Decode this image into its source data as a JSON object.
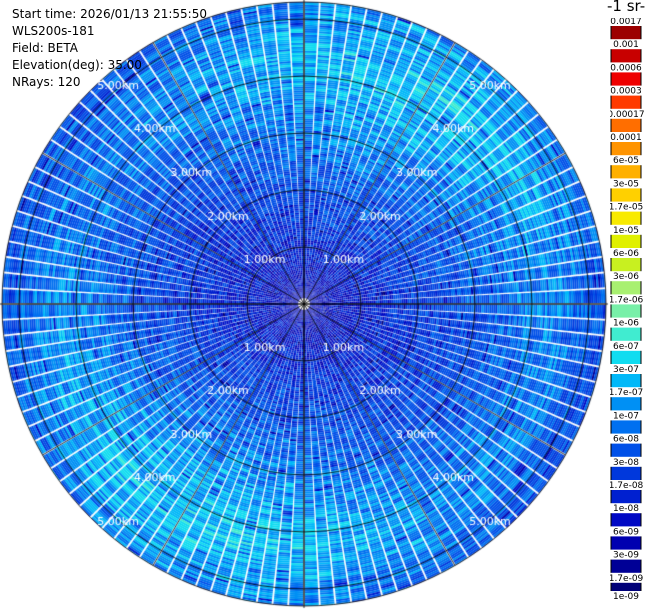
{
  "header": {
    "start_time": "Start time: 2026/01/13 21:55:50",
    "instrument": "WLS200s-181",
    "field": "Field: BETA",
    "elevation": "Elevation(deg): 35.00",
    "nrays": "NRays: 120"
  },
  "colorbar": {
    "unit_label": "-1 sr-",
    "ticks": [
      "0.0017",
      "0.001",
      "0.0006",
      "0.0003",
      "0.00017",
      "0.0001",
      "6e-05",
      "3e-05",
      "1.7e-05",
      "1e-05",
      "6e-06",
      "3e-06",
      "1.7e-06",
      "1e-06",
      "6e-07",
      "3e-07",
      "1.7e-07",
      "1e-07",
      "6e-08",
      "3e-08",
      "1.7e-08",
      "1e-08",
      "6e-09",
      "3e-09",
      "1.7e-09",
      "1e-09"
    ],
    "colors": [
      "#9c0000",
      "#c80000",
      "#ee0000",
      "#ff3a00",
      "#ff6e00",
      "#ff9400",
      "#ffb000",
      "#ffd000",
      "#f8ea00",
      "#e0f000",
      "#c8f020",
      "#a8f070",
      "#78f0a8",
      "#40ecd0",
      "#10dcf0",
      "#00b8f8",
      "#0090f4",
      "#0070f0",
      "#0050e8",
      "#0038dc",
      "#0020d0",
      "#0008c4",
      "#0000b0",
      "#000096",
      "#000078"
    ]
  },
  "chart_data": {
    "type": "heatmap",
    "projection": "polar-ppi",
    "field": "BETA",
    "elevation_deg": 35.0,
    "n_rays": 120,
    "range_max_km": 5.3,
    "range_rings_km": [
      1.0,
      2.0,
      3.0,
      4.0,
      5.0
    ],
    "range_ring_labels": [
      "1.00km",
      "2.00km",
      "3.00km",
      "4.00km",
      "5.00km"
    ],
    "scale": "log",
    "value_range": [
      1e-09,
      0.0017
    ],
    "typical_values": {
      "near_center": 5e-09,
      "mid_range": 3e-08,
      "outer_ring_4_to_5km": 1.7e-07
    }
  }
}
